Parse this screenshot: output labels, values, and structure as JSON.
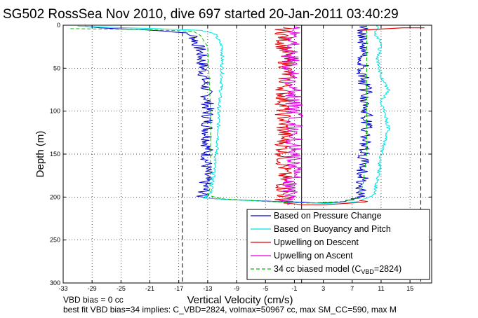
{
  "chart_data": {
    "type": "line",
    "title": "SG502 RossSea Nov 2010, dive 697 started 20-Jan-2011 03:40:29",
    "xlabel": "Vertical Velocity (cm/s)",
    "ylabel": "Depth (m)",
    "xlim": [
      -33,
      18
    ],
    "ylim": [
      300,
      0
    ],
    "y_inverted": true,
    "grid": true,
    "xticks": [
      -33,
      -29,
      -25,
      -21,
      -17,
      -13,
      -9,
      -5,
      -1,
      3,
      7,
      11,
      15
    ],
    "xtick_labels": [
      "-33",
      "-29",
      "-25",
      "-21",
      "-17",
      "-13",
      "-9",
      "-5",
      "-1",
      "3",
      "7",
      "11",
      "15"
    ],
    "yticks": [
      0,
      50,
      100,
      150,
      200,
      250,
      300
    ],
    "ytick_labels": [
      "0",
      "50",
      "100",
      "150",
      "200",
      "250",
      "300"
    ],
    "legend_position": "bottom-right",
    "legend": [
      {
        "label": "Based on Pressure Change",
        "color": "#0000cc",
        "style": "solid"
      },
      {
        "label": "Based on Buoyancy and Pitch",
        "color": "#00e5e5",
        "style": "solid"
      },
      {
        "label": "Upwelling on Descent",
        "color": "#e00000",
        "style": "solid"
      },
      {
        "label": "Upwelling on Ascent",
        "color": "#e000e0",
        "style": "solid"
      },
      {
        "label": "34 cc biased model (C",
        "label_sub": "VBD",
        "label_suffix": "=2824)",
        "color": "#00c000",
        "style": "dashed"
      }
    ],
    "reference_lines": [
      {
        "x": -16.5,
        "style": "dashed",
        "color": "#000000"
      },
      {
        "x": 16.5,
        "style": "dashed",
        "color": "#000000"
      },
      {
        "x": 0,
        "style": "solid",
        "color": "#000000"
      }
    ],
    "series": [
      {
        "name": "Based on Pressure Change",
        "color": "#0000cc",
        "noise": 0.9,
        "points": [
          [
            -30,
            1
          ],
          [
            -28,
            3
          ],
          [
            -22,
            5
          ],
          [
            -17,
            8
          ],
          [
            -15,
            12
          ],
          [
            -14,
            30
          ],
          [
            -13.5,
            60
          ],
          [
            -13,
            90
          ],
          [
            -13,
            130
          ],
          [
            -13.2,
            170
          ],
          [
            -13.5,
            195
          ],
          [
            -14,
            200
          ],
          [
            -10,
            203
          ],
          [
            -3,
            205
          ],
          [
            2,
            207
          ],
          [
            6,
            206
          ],
          [
            8,
            200
          ],
          [
            8.5,
            180
          ],
          [
            8.5,
            150
          ],
          [
            9,
            120
          ],
          [
            9,
            100
          ],
          [
            9,
            80
          ],
          [
            8.5,
            60
          ],
          [
            8.5,
            30
          ],
          [
            8.5,
            10
          ],
          [
            8.8,
            3
          ],
          [
            9,
            1
          ]
        ]
      },
      {
        "name": "Based on Buoyancy and Pitch",
        "color": "#00e5e5",
        "noise": 0.25,
        "points": [
          [
            -31,
            1
          ],
          [
            -28,
            2
          ],
          [
            -20,
            4
          ],
          [
            -14,
            6
          ],
          [
            -12,
            10
          ],
          [
            -11,
            25
          ],
          [
            -11,
            60
          ],
          [
            -11.5,
            100
          ],
          [
            -11.5,
            130
          ],
          [
            -12,
            160
          ],
          [
            -12.5,
            195
          ],
          [
            -13.5,
            201
          ],
          [
            -10,
            203
          ],
          [
            -2,
            206
          ],
          [
            5,
            208
          ],
          [
            8,
            205
          ],
          [
            10,
            198
          ],
          [
            10.5,
            180
          ],
          [
            11,
            150
          ],
          [
            12,
            120
          ],
          [
            11.5,
            100
          ],
          [
            11,
            90
          ],
          [
            12,
            75
          ],
          [
            11,
            60
          ],
          [
            10.5,
            40
          ],
          [
            11,
            20
          ],
          [
            10,
            8
          ],
          [
            10.5,
            2
          ],
          [
            10.5,
            0
          ]
        ]
      },
      {
        "name": "Upwelling on Descent",
        "color": "#e00000",
        "noise": 1.2,
        "points": [
          [
            -2.5,
            2
          ],
          [
            -2.5,
            20
          ],
          [
            -2,
            50
          ],
          [
            -2.5,
            80
          ],
          [
            -2.5,
            100
          ],
          [
            -2.5,
            130
          ],
          [
            -2.5,
            160
          ],
          [
            -2.5,
            190
          ],
          [
            -2.5,
            205
          ],
          [
            -1,
            209
          ],
          [
            3,
            209
          ],
          [
            6,
            208
          ],
          [
            8,
            206
          ],
          [
            8,
            204
          ]
        ]
      },
      {
        "name": "Upwelling on Ascent",
        "color": "#e000e0",
        "noise": 1.2,
        "points": [
          [
            -2,
            209
          ],
          [
            -1.5,
            190
          ],
          [
            -1,
            160
          ],
          [
            -1,
            130
          ],
          [
            -1,
            100
          ],
          [
            -1,
            80
          ],
          [
            -1.5,
            60
          ],
          [
            -1.5,
            30
          ],
          [
            -1,
            10
          ],
          [
            -1,
            2
          ]
        ]
      },
      {
        "name": "34 cc biased model",
        "color": "#00c000",
        "dashed": true,
        "noise": 0,
        "points": [
          [
            -32,
            4
          ],
          [
            -22,
            5
          ],
          [
            -15,
            7
          ],
          [
            -14,
            12
          ],
          [
            -13,
            25
          ],
          [
            -12.8,
            60
          ],
          [
            -12.6,
            100
          ],
          [
            -12.6,
            150
          ],
          [
            -12.7,
            190
          ],
          [
            -13,
            198
          ],
          [
            -11,
            202
          ],
          [
            -5,
            205
          ],
          [
            1,
            207
          ],
          [
            6,
            205
          ],
          [
            8,
            200
          ],
          [
            8.5,
            185
          ],
          [
            9,
            150
          ],
          [
            9,
            100
          ],
          [
            9,
            60
          ],
          [
            9,
            20
          ],
          [
            9,
            5
          ],
          [
            9,
            1
          ]
        ]
      }
    ],
    "surface_spike": {
      "color": "#e00000",
      "points": [
        [
          8,
          6
        ],
        [
          12,
          4
        ],
        [
          14,
          3
        ],
        [
          16,
          3
        ],
        [
          17,
          3
        ]
      ]
    }
  },
  "footer": {
    "line1": "VBD bias = 0 cc",
    "line2": "best fit VBD bias=34 implies: C_VBD=2824, volmax=50967 cc, max SM_CC=590, max M"
  }
}
